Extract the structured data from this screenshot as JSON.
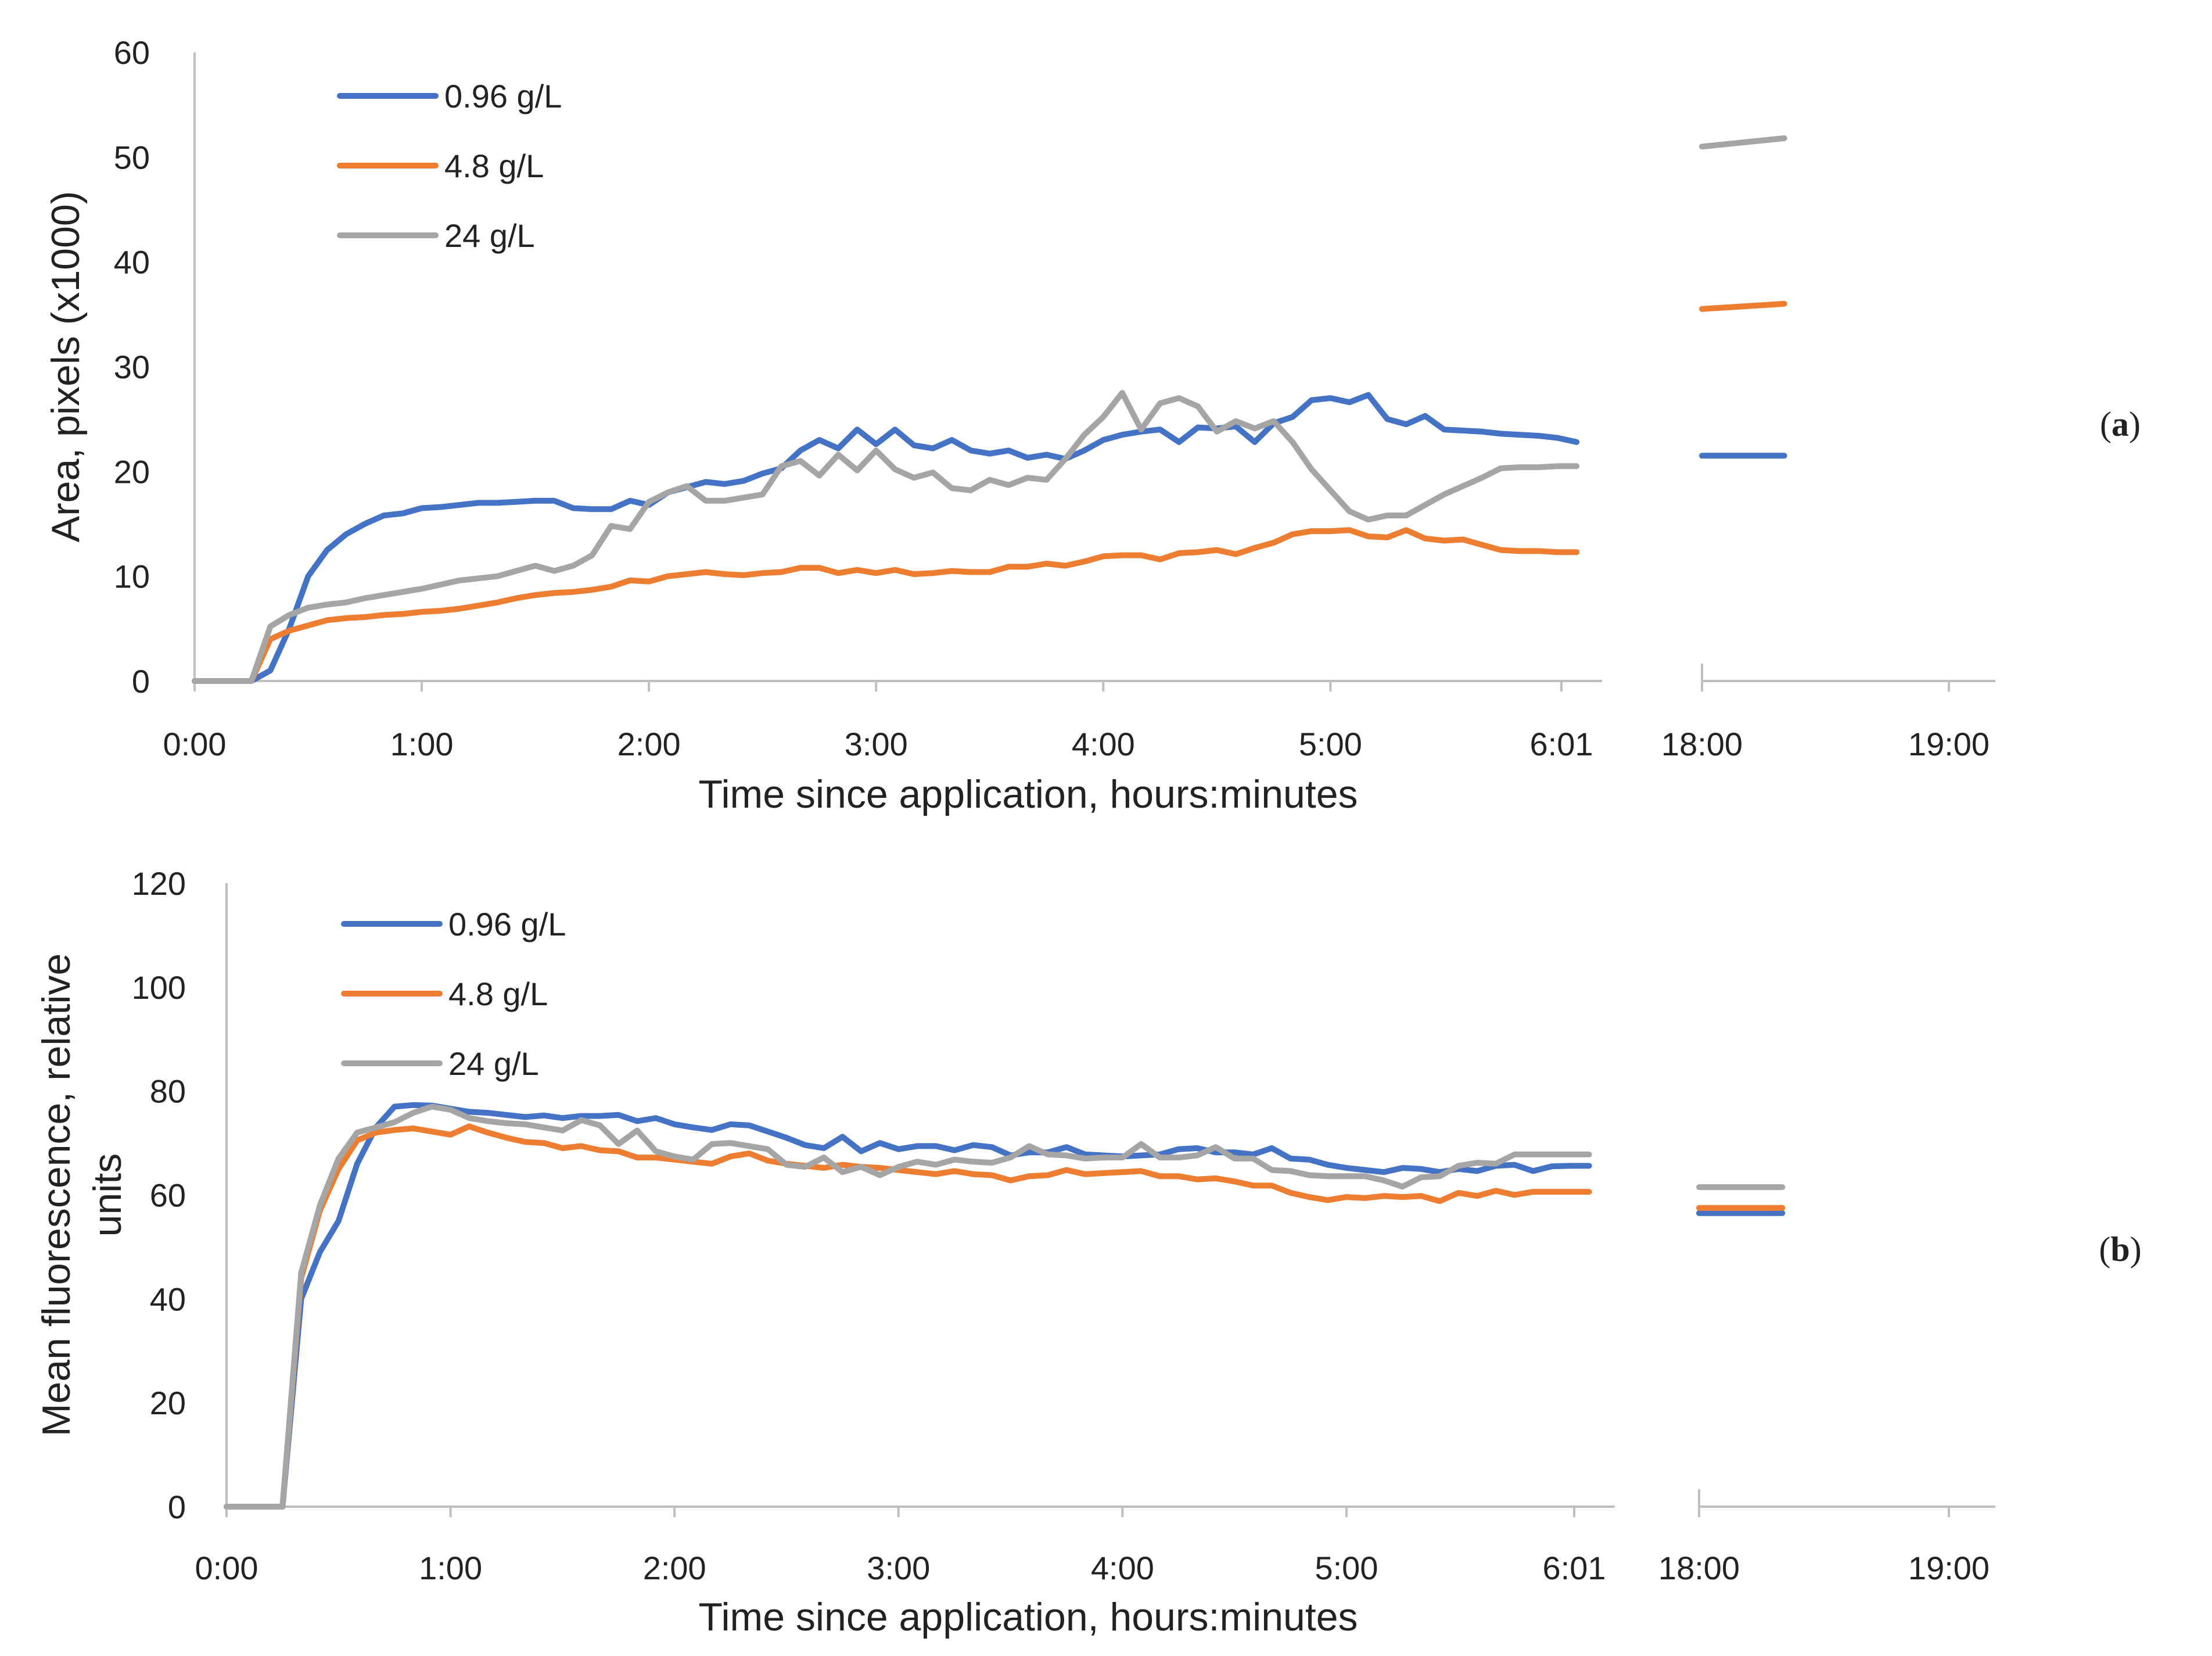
{
  "figure": {
    "panels": [
      {
        "id": "a",
        "label_open": "(",
        "label_letter": "a",
        "label_close": ")"
      },
      {
        "id": "b",
        "label_open": "(",
        "label_letter": "b",
        "label_close": ")"
      }
    ]
  },
  "chart_data": [
    {
      "type": "line",
      "panel": "a",
      "title": "",
      "xlabel": "Time since application, hours:minutes",
      "ylabel": "Area, pixels (x1000)",
      "ylim": [
        0,
        60
      ],
      "yticks": [
        "0",
        "10",
        "20",
        "30",
        "40",
        "50",
        "60"
      ],
      "x_left_range_minutes": [
        0,
        365
      ],
      "x_left_ticks": [
        "0:00",
        "1:00",
        "2:00",
        "3:00",
        "4:00",
        "5:00",
        "6:01"
      ],
      "x_right_range_minutes": [
        1080,
        1140
      ],
      "x_right_ticks": [
        "18:00",
        "19:00"
      ],
      "grid": false,
      "legend_position": "top-left",
      "colors": {
        "0.96 g/L": "#4472C4",
        "4.8 g/L": "#ED7D31",
        "24 g/L": "#A5A5A5"
      },
      "series": [
        {
          "name": "0.96 g/L",
          "x": [
            0,
            5,
            10,
            15,
            20,
            25,
            30,
            35,
            40,
            45,
            50,
            55,
            60,
            65,
            70,
            75,
            80,
            85,
            90,
            95,
            100,
            105,
            110,
            115,
            120,
            125,
            130,
            135,
            140,
            145,
            150,
            155,
            160,
            165,
            170,
            175,
            180,
            185,
            190,
            195,
            200,
            205,
            210,
            215,
            220,
            225,
            230,
            235,
            240,
            245,
            250,
            255,
            260,
            265,
            270,
            275,
            280,
            285,
            290,
            295,
            300,
            305,
            310,
            315,
            320,
            325,
            330,
            335,
            340,
            345,
            350,
            355,
            360,
            365
          ],
          "values": [
            0,
            0,
            0,
            0,
            1,
            5,
            10,
            12.5,
            14,
            15,
            15.8,
            16,
            16.5,
            16.6,
            16.8,
            17,
            17,
            17.1,
            17.2,
            17.2,
            16.5,
            16.4,
            16.4,
            17.2,
            16.8,
            18,
            18.5,
            19,
            18.8,
            19.1,
            19.8,
            20.3,
            22,
            23,
            22.2,
            24,
            22.6,
            24,
            22.5,
            22.2,
            23,
            22,
            21.7,
            22,
            21.3,
            21.6,
            21.2,
            22,
            23,
            23.5,
            23.8,
            24,
            22.8,
            24.2,
            24.1,
            24.3,
            22.8,
            24.6,
            25.2,
            26.8,
            27,
            26.6,
            27.3,
            25,
            24.5,
            25.3,
            24,
            23.9,
            23.8,
            23.6,
            23.5,
            23.4,
            23.2,
            22.8
          ],
          "later_x": [
            1080,
            1100
          ],
          "later_values": [
            21.5,
            21.5
          ]
        },
        {
          "name": "4.8 g/L",
          "x": [
            0,
            5,
            10,
            15,
            20,
            25,
            30,
            35,
            40,
            45,
            50,
            55,
            60,
            65,
            70,
            75,
            80,
            85,
            90,
            95,
            100,
            105,
            110,
            115,
            120,
            125,
            130,
            135,
            140,
            145,
            150,
            155,
            160,
            165,
            170,
            175,
            180,
            185,
            190,
            195,
            200,
            205,
            210,
            215,
            220,
            225,
            230,
            235,
            240,
            245,
            250,
            255,
            260,
            265,
            270,
            275,
            280,
            285,
            290,
            295,
            300,
            305,
            310,
            315,
            320,
            325,
            330,
            335,
            340,
            345,
            350,
            355,
            360,
            365
          ],
          "values": [
            0,
            0,
            0,
            0,
            4,
            4.8,
            5.3,
            5.8,
            6,
            6.1,
            6.3,
            6.4,
            6.6,
            6.7,
            6.9,
            7.2,
            7.5,
            7.9,
            8.2,
            8.4,
            8.5,
            8.7,
            9,
            9.6,
            9.5,
            10,
            10.2,
            10.4,
            10.2,
            10.1,
            10.3,
            10.4,
            10.8,
            10.8,
            10.3,
            10.6,
            10.3,
            10.6,
            10.2,
            10.3,
            10.5,
            10.4,
            10.4,
            10.9,
            10.9,
            11.2,
            11,
            11.4,
            11.9,
            12,
            12,
            11.6,
            12.2,
            12.3,
            12.5,
            12.1,
            12.7,
            13.2,
            14,
            14.3,
            14.3,
            14.4,
            13.8,
            13.7,
            14.4,
            13.6,
            13.4,
            13.5,
            13,
            12.5,
            12.4,
            12.4,
            12.3,
            12.3
          ],
          "later_x": [
            1080,
            1100
          ],
          "later_values": [
            35.5,
            36
          ]
        },
        {
          "name": "24 g/L",
          "x": [
            0,
            5,
            10,
            15,
            20,
            25,
            30,
            35,
            40,
            45,
            50,
            55,
            60,
            65,
            70,
            75,
            80,
            85,
            90,
            95,
            100,
            105,
            110,
            115,
            120,
            125,
            130,
            135,
            140,
            145,
            150,
            155,
            160,
            165,
            170,
            175,
            180,
            185,
            190,
            195,
            200,
            205,
            210,
            215,
            220,
            225,
            230,
            235,
            240,
            245,
            250,
            255,
            260,
            265,
            270,
            275,
            280,
            285,
            290,
            295,
            300,
            305,
            310,
            315,
            320,
            325,
            330,
            335,
            340,
            345,
            350,
            355,
            360,
            365
          ],
          "values": [
            0,
            0,
            0,
            0,
            5.2,
            6.3,
            7,
            7.3,
            7.5,
            7.9,
            8.2,
            8.5,
            8.8,
            9.2,
            9.6,
            9.8,
            10,
            10.5,
            11,
            10.5,
            11,
            12,
            14.8,
            14.5,
            17.1,
            18,
            18.6,
            17.2,
            17.2,
            17.5,
            17.8,
            20.5,
            21,
            19.6,
            21.6,
            20.1,
            22,
            20.2,
            19.4,
            19.9,
            18.4,
            18.2,
            19.2,
            18.7,
            19.4,
            19.2,
            21.2,
            23.5,
            25.2,
            27.5,
            24,
            26.5,
            27,
            26.2,
            23.8,
            24.8,
            24.1,
            24.8,
            22.8,
            20.2,
            18.2,
            16.2,
            15.4,
            15.8,
            15.8,
            16.8,
            17.8,
            18.6,
            19.4,
            20.3,
            20.4,
            20.4,
            20.5,
            20.5
          ],
          "later_x": [
            1080,
            1100
          ],
          "later_values": [
            51,
            51.8
          ]
        }
      ]
    },
    {
      "type": "line",
      "panel": "b",
      "title": "",
      "xlabel": "Time since application, hours:minutes",
      "ylabel_lines": [
        "Mean fluorescence, relative",
        "units"
      ],
      "ylim": [
        0,
        120
      ],
      "yticks": [
        "0",
        "20",
        "40",
        "60",
        "80",
        "100",
        "120"
      ],
      "x_left_range_minutes": [
        0,
        365
      ],
      "x_left_ticks": [
        "0:00",
        "1:00",
        "2:00",
        "3:00",
        "4:00",
        "5:00",
        "6:01"
      ],
      "x_right_range_minutes": [
        1080,
        1140
      ],
      "x_right_ticks": [
        "18:00",
        "19:00"
      ],
      "grid": false,
      "legend_position": "top-left",
      "colors": {
        "0.96 g/L": "#4472C4",
        "4.8 g/L": "#ED7D31",
        "24 g/L": "#A5A5A5"
      },
      "series": [
        {
          "name": "0.96 g/L",
          "x": [
            0,
            5,
            10,
            15,
            20,
            25,
            30,
            35,
            40,
            45,
            50,
            55,
            60,
            65,
            70,
            75,
            80,
            85,
            90,
            95,
            100,
            105,
            110,
            115,
            120,
            125,
            130,
            135,
            140,
            145,
            150,
            155,
            160,
            165,
            170,
            175,
            180,
            185,
            190,
            195,
            200,
            205,
            210,
            215,
            220,
            225,
            230,
            235,
            240,
            245,
            250,
            255,
            260,
            265,
            270,
            275,
            280,
            285,
            290,
            295,
            300,
            305,
            310,
            315,
            320,
            325,
            330,
            335,
            340,
            345,
            350,
            355,
            360,
            365
          ],
          "values": [
            0,
            0,
            0,
            0,
            40,
            49,
            55,
            66,
            73,
            77,
            77.3,
            77.2,
            76.6,
            76,
            75.8,
            75.4,
            75,
            75.3,
            74.8,
            75.2,
            75.2,
            75.4,
            74.2,
            74.8,
            73.6,
            73,
            72.5,
            73.6,
            73.4,
            72.2,
            71,
            69.6,
            69,
            71.2,
            68.4,
            70,
            68.8,
            69.4,
            69.4,
            68.6,
            69.6,
            69.2,
            67.6,
            68.2,
            68.2,
            69.2,
            67.8,
            67.6,
            67.4,
            67.6,
            67.8,
            68.8,
            69,
            68.2,
            68.2,
            67.8,
            69,
            67,
            66.8,
            65.8,
            65.2,
            64.8,
            64.4,
            65.2,
            65,
            64.4,
            65,
            64.6,
            65.6,
            65.8,
            64.6,
            65.5,
            65.6,
            65.6
          ],
          "later_x": [
            1080,
            1100
          ],
          "later_values": [
            56.5,
            56.5
          ]
        },
        {
          "name": "4.8 g/L",
          "x": [
            0,
            5,
            10,
            15,
            20,
            25,
            30,
            35,
            40,
            45,
            50,
            55,
            60,
            65,
            70,
            75,
            80,
            85,
            90,
            95,
            100,
            105,
            110,
            115,
            120,
            125,
            130,
            135,
            140,
            145,
            150,
            155,
            160,
            165,
            170,
            175,
            180,
            185,
            190,
            195,
            200,
            205,
            210,
            215,
            220,
            225,
            230,
            235,
            240,
            245,
            250,
            255,
            260,
            265,
            270,
            275,
            280,
            285,
            290,
            295,
            300,
            305,
            310,
            315,
            320,
            325,
            330,
            335,
            340,
            345,
            350,
            355,
            360,
            365
          ],
          "values": [
            0,
            0,
            0,
            0,
            44,
            57,
            65,
            70.5,
            72,
            72.5,
            72.8,
            72.2,
            71.6,
            73.2,
            72,
            71,
            70.2,
            70,
            69,
            69.4,
            68.6,
            68.4,
            67.2,
            67.2,
            66.8,
            66.4,
            66,
            67.4,
            68,
            66.6,
            66,
            65.6,
            65.2,
            65.8,
            65.4,
            65.2,
            64.8,
            64.4,
            64,
            64.6,
            64,
            63.8,
            62.8,
            63.6,
            63.8,
            64.8,
            64,
            64.2,
            64.4,
            64.6,
            63.6,
            63.6,
            63,
            63.2,
            62.6,
            61.8,
            61.8,
            60.4,
            59.6,
            59,
            59.6,
            59.4,
            59.8,
            59.6,
            59.8,
            58.8,
            60.4,
            59.8,
            60.8,
            60,
            60.6,
            60.6,
            60.6,
            60.6
          ],
          "later_x": [
            1080,
            1100
          ],
          "later_values": [
            57.5,
            57.5
          ]
        },
        {
          "name": "24 g/L",
          "x": [
            0,
            5,
            10,
            15,
            20,
            25,
            30,
            35,
            40,
            45,
            50,
            55,
            60,
            65,
            70,
            75,
            80,
            85,
            90,
            95,
            100,
            105,
            110,
            115,
            120,
            125,
            130,
            135,
            140,
            145,
            150,
            155,
            160,
            165,
            170,
            175,
            180,
            185,
            190,
            195,
            200,
            205,
            210,
            215,
            220,
            225,
            230,
            235,
            240,
            245,
            250,
            255,
            260,
            265,
            270,
            275,
            280,
            285,
            290,
            295,
            300,
            305,
            310,
            315,
            320,
            325,
            330,
            335,
            340,
            345,
            350,
            355,
            360,
            365
          ],
          "values": [
            0,
            0,
            0,
            0,
            45,
            58,
            67,
            72,
            73,
            74,
            75.8,
            77,
            76.4,
            74.8,
            74.2,
            73.8,
            73.6,
            73,
            72.4,
            74.4,
            73.4,
            69.8,
            72.4,
            68.4,
            67.4,
            66.8,
            69.8,
            70,
            69.4,
            68.8,
            65.8,
            65.4,
            67.2,
            64.4,
            65.4,
            63.8,
            65.4,
            66.4,
            65.8,
            66.8,
            66.4,
            66.2,
            67.2,
            69.4,
            67.8,
            67.6,
            67,
            67.2,
            67.2,
            69.8,
            67.2,
            67.2,
            67.6,
            69.2,
            67,
            67,
            64.8,
            64.6,
            63.8,
            63.6,
            63.6,
            63.6,
            62.8,
            61.6,
            63.4,
            63.6,
            65.6,
            66.2,
            66,
            67.8,
            67.8,
            67.8,
            67.8,
            67.8
          ],
          "later_x": [
            1080,
            1100
          ],
          "later_values": [
            61.5,
            61.5
          ]
        }
      ]
    }
  ]
}
